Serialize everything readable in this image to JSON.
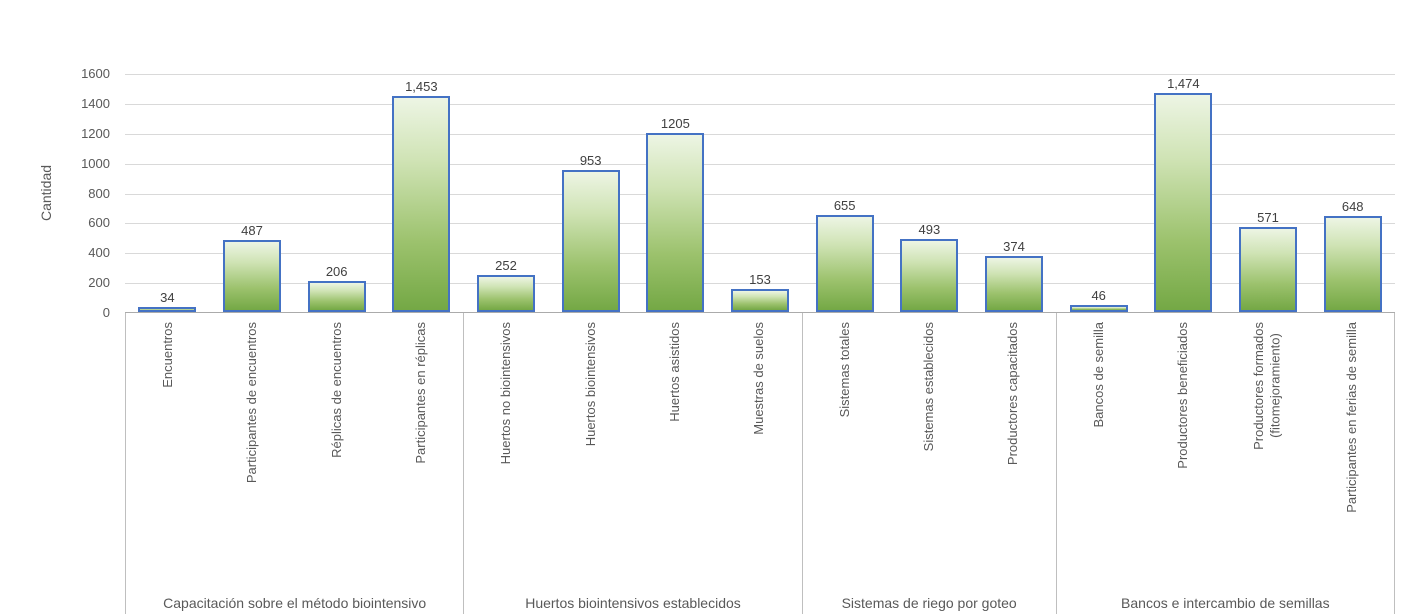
{
  "chart_data": {
    "type": "bar",
    "title": "",
    "xlabel": "",
    "ylabel": "Cantidad",
    "ylim": [
      0,
      1600
    ],
    "ytick_interval": 200,
    "yticks": [
      0,
      200,
      400,
      600,
      800,
      1000,
      1200,
      1400,
      1600
    ],
    "grid": true,
    "legend": null,
    "groups": [
      {
        "label": "Capacitación sobre el método biointensivo",
        "categories": [
          "Encuentros",
          "Participantes de encuentros",
          "Réplicas de encuentros",
          "Participantes en réplicas"
        ],
        "values": [
          34,
          487,
          206,
          1453
        ],
        "value_labels": [
          "34",
          "487",
          "206",
          "1,453"
        ]
      },
      {
        "label": "Huertos biointensivos establecidos",
        "categories": [
          "Huertos no biointensivos",
          "Huertos biointensivos",
          "Huertos asistidos",
          "Muestras de suelos"
        ],
        "values": [
          252,
          953,
          1205,
          153
        ],
        "value_labels": [
          "252",
          "953",
          "1205",
          "153"
        ]
      },
      {
        "label": "Sistemas de riego por goteo",
        "categories": [
          "Sistemas totales",
          "Sistemas establecidos",
          "Productores capacitados"
        ],
        "values": [
          655,
          493,
          374
        ],
        "value_labels": [
          "655",
          "493",
          "374"
        ]
      },
      {
        "label": "Bancos e intercambio de semillas",
        "categories": [
          "Bancos de semilla",
          "Productores beneficiados",
          "Productores formados\n(fitomejoramiento)",
          "Participantes en ferias de semilla"
        ],
        "values": [
          46,
          1474,
          571,
          648
        ],
        "value_labels": [
          "46",
          "1,474",
          "571",
          "648"
        ]
      }
    ],
    "colors": {
      "bar_border": "#4472C4",
      "bar_fill_top": "#EDF5E4",
      "bar_fill_bottom": "#74A845",
      "gridline": "#D9D9D9",
      "axis_line": "#ABABAB",
      "divider_line": "#BFBFBF",
      "tick_text": "#595959",
      "value_text": "#404040",
      "background": "#FFFFFF"
    }
  }
}
